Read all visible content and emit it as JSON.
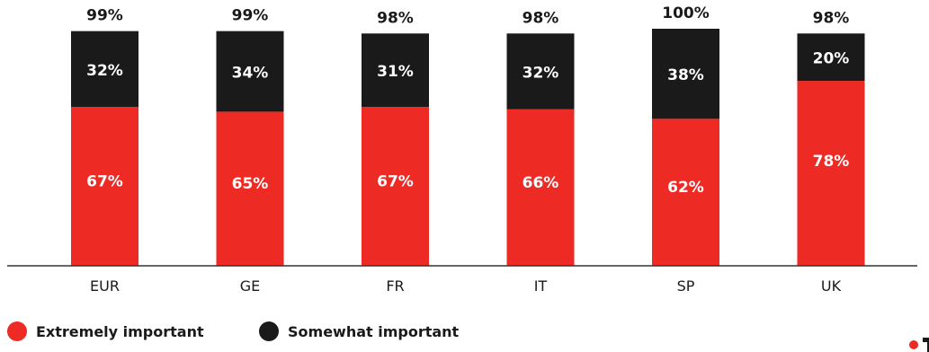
{
  "chart_data": {
    "type": "bar",
    "stacked": true,
    "categories": [
      "EUR",
      "GE",
      "FR",
      "IT",
      "SP",
      "UK"
    ],
    "series": [
      {
        "name": "Extremely important",
        "color": "#ee2a24",
        "values": [
          67,
          65,
          67,
          66,
          62,
          78
        ],
        "labels": [
          "67%",
          "65%",
          "67%",
          "66%",
          "62%",
          "78%"
        ]
      },
      {
        "name": "Somewhat important",
        "color": "#1a1a1a",
        "values": [
          32,
          34,
          31,
          32,
          38,
          20
        ],
        "labels": [
          "32%",
          "34%",
          "31%",
          "32%",
          "38%",
          "20%"
        ]
      }
    ],
    "totals": [
      99,
      99,
      98,
      98,
      100,
      98
    ],
    "total_labels": [
      "99%",
      "99%",
      "98%",
      "98%",
      "100%",
      "98%"
    ],
    "ylim": [
      0,
      100
    ],
    "grid": false,
    "legend_position": "bottom-left"
  },
  "legend": {
    "items": [
      {
        "label": "Extremely important",
        "color": "#ee2a24"
      },
      {
        "label": "Somewhat important",
        "color": "#1a1a1a"
      }
    ]
  },
  "colors": {
    "axis": "#333333",
    "value_label_on_bar": "#ffffff",
    "total_label": "#1a1a1a",
    "category_label": "#1a1a1a"
  }
}
